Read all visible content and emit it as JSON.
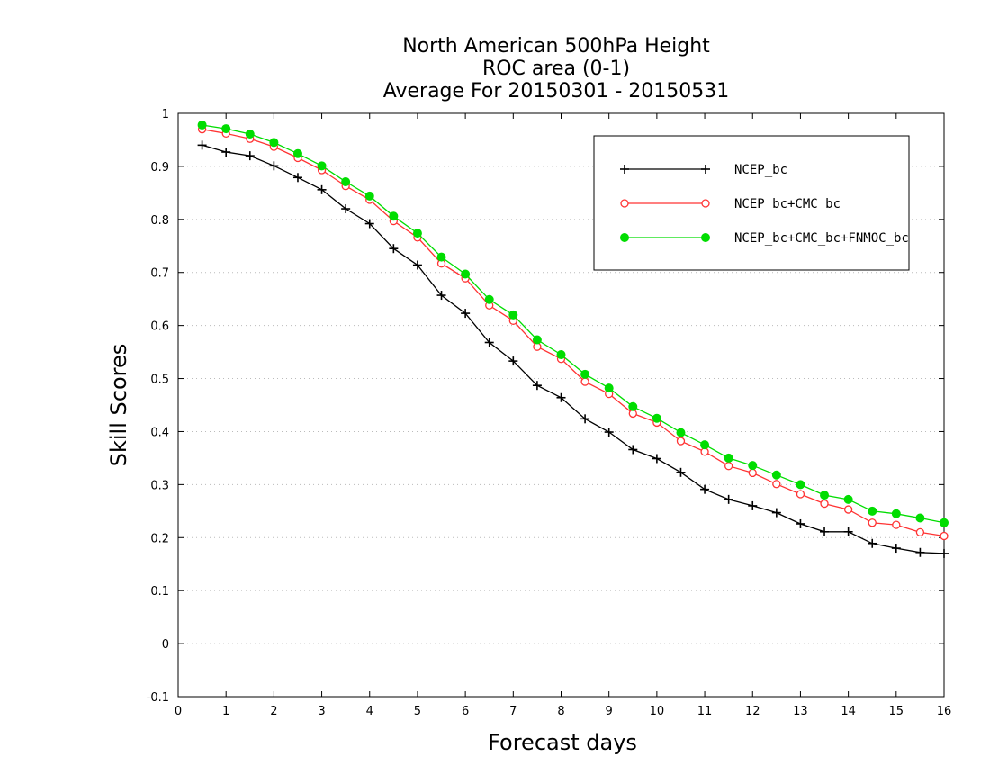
{
  "chart_data": {
    "type": "line",
    "title": [
      "North American 500hPa Height",
      "ROC area (0-1)",
      "Average For 20150301 - 20150531"
    ],
    "xlabel": "Forecast days",
    "ylabel": "Skill Scores",
    "xlim": [
      0,
      16
    ],
    "ylim": [
      -0.1,
      1
    ],
    "xticks": [
      0,
      1,
      2,
      3,
      4,
      5,
      6,
      7,
      8,
      9,
      10,
      11,
      12,
      13,
      14,
      15,
      16
    ],
    "yticks": [
      -0.1,
      0,
      0.1,
      0.2,
      0.3,
      0.4,
      0.5,
      0.6,
      0.7,
      0.8,
      0.9,
      1
    ],
    "ytick_labels": [
      "-0.1",
      "0",
      "0.1",
      "0.2",
      "0.3",
      "0.4",
      "0.5",
      "0.6",
      "0.7",
      "0.8",
      "0.9",
      "1"
    ],
    "grid": true,
    "legend_position": "top-right",
    "x": [
      0.5,
      1,
      1.5,
      2,
      2.5,
      3,
      3.5,
      4,
      4.5,
      5,
      5.5,
      6,
      6.5,
      7,
      7.5,
      8,
      8.5,
      9,
      9.5,
      10,
      10.5,
      11,
      11.5,
      12,
      12.5,
      13,
      13.5,
      14,
      14.5,
      15,
      15.5,
      16
    ],
    "series": [
      {
        "name": "NCEP_bc",
        "color": "#000000",
        "marker": "plus",
        "values": [
          0.94,
          0.927,
          0.92,
          0.901,
          0.879,
          0.856,
          0.82,
          0.792,
          0.745,
          0.714,
          0.657,
          0.623,
          0.568,
          0.533,
          0.487,
          0.464,
          0.424,
          0.399,
          0.366,
          0.349,
          0.323,
          0.291,
          0.272,
          0.26,
          0.247,
          0.226,
          0.211,
          0.211,
          0.189,
          0.18,
          0.172,
          0.17
        ]
      },
      {
        "name": "NCEP_bc+CMC_bc",
        "color": "#ff3333",
        "marker": "open-circle",
        "values": [
          0.97,
          0.962,
          0.952,
          0.937,
          0.916,
          0.893,
          0.863,
          0.837,
          0.797,
          0.766,
          0.717,
          0.689,
          0.638,
          0.609,
          0.56,
          0.537,
          0.494,
          0.471,
          0.434,
          0.417,
          0.382,
          0.362,
          0.335,
          0.322,
          0.301,
          0.282,
          0.264,
          0.253,
          0.228,
          0.224,
          0.21,
          0.203
        ]
      },
      {
        "name": "NCEP_bc+CMC_bc+FNMOC_bc",
        "color": "#00dd00",
        "marker": "filled-circle",
        "values": [
          0.978,
          0.971,
          0.961,
          0.945,
          0.924,
          0.901,
          0.871,
          0.844,
          0.806,
          0.774,
          0.729,
          0.697,
          0.649,
          0.62,
          0.573,
          0.545,
          0.508,
          0.482,
          0.447,
          0.425,
          0.398,
          0.375,
          0.35,
          0.336,
          0.318,
          0.3,
          0.28,
          0.272,
          0.25,
          0.245,
          0.237,
          0.228
        ]
      }
    ]
  }
}
